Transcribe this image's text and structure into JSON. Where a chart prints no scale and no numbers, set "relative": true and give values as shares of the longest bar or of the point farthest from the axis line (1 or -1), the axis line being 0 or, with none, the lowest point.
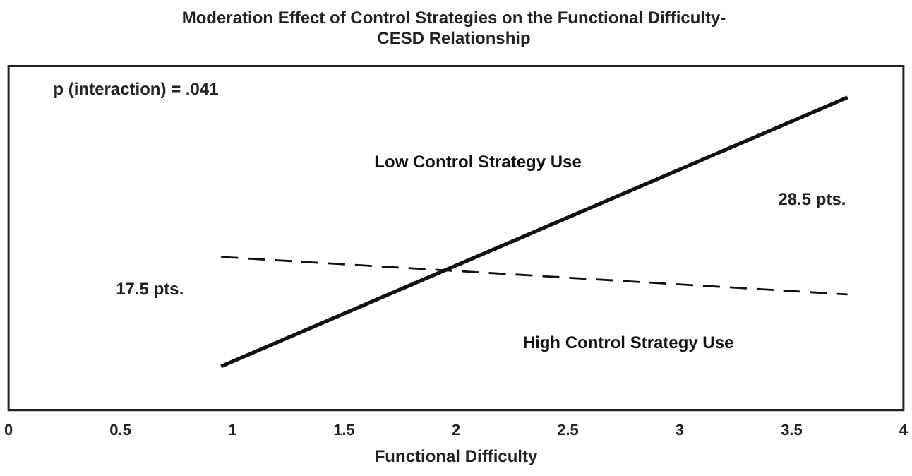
{
  "chart_data": {
    "type": "line",
    "title": "Moderation Effect of Control Strategies on the Functional Difficulty-CESD Relationship",
    "xlabel": "Functional Difficulty",
    "relative": true,
    "xlim": [
      0,
      4
    ],
    "xticks": [
      0,
      0.5,
      1,
      1.5,
      2,
      2.5,
      3,
      3.5,
      4
    ],
    "grid": false,
    "legend": false,
    "marker": "none",
    "x": [
      0.95,
      3.75
    ],
    "series": [
      {
        "name": "Low Control Strategy Use",
        "color": "#111111",
        "line_style": "solid",
        "values": [
          0.14,
          1
        ]
      },
      {
        "name": "High Control Strategy Use",
        "color": "#111111",
        "line_style": "dashed",
        "values": [
          0.49,
          0.37
        ]
      }
    ],
    "annotations": [
      "p (interaction) = .041",
      "17.5 pts.",
      "28.5 pts."
    ]
  }
}
